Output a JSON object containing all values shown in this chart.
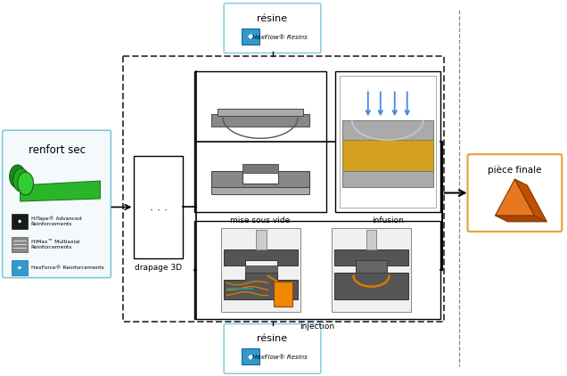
{
  "bg_color": "#ffffff",
  "light_blue_border": "#7ec8d8",
  "orange_border": "#e8a030",
  "renfort_sec_label": "renfort sec",
  "hitape_label": "HiTape® Advanced\nReinforcements",
  "himax_label": "HiMax™ Multiaxial\nReinforcements",
  "hexforce_label": "HexForce® Reinforcements",
  "resine_label": "résine",
  "resine_sub": "HexFlow® Resins",
  "drapage_label": "drapage 3D",
  "mise_vide_label": "mise sous vide",
  "infusion_label": "infusion",
  "injection_label": "injection",
  "piece_finale_label": "pièce finale"
}
